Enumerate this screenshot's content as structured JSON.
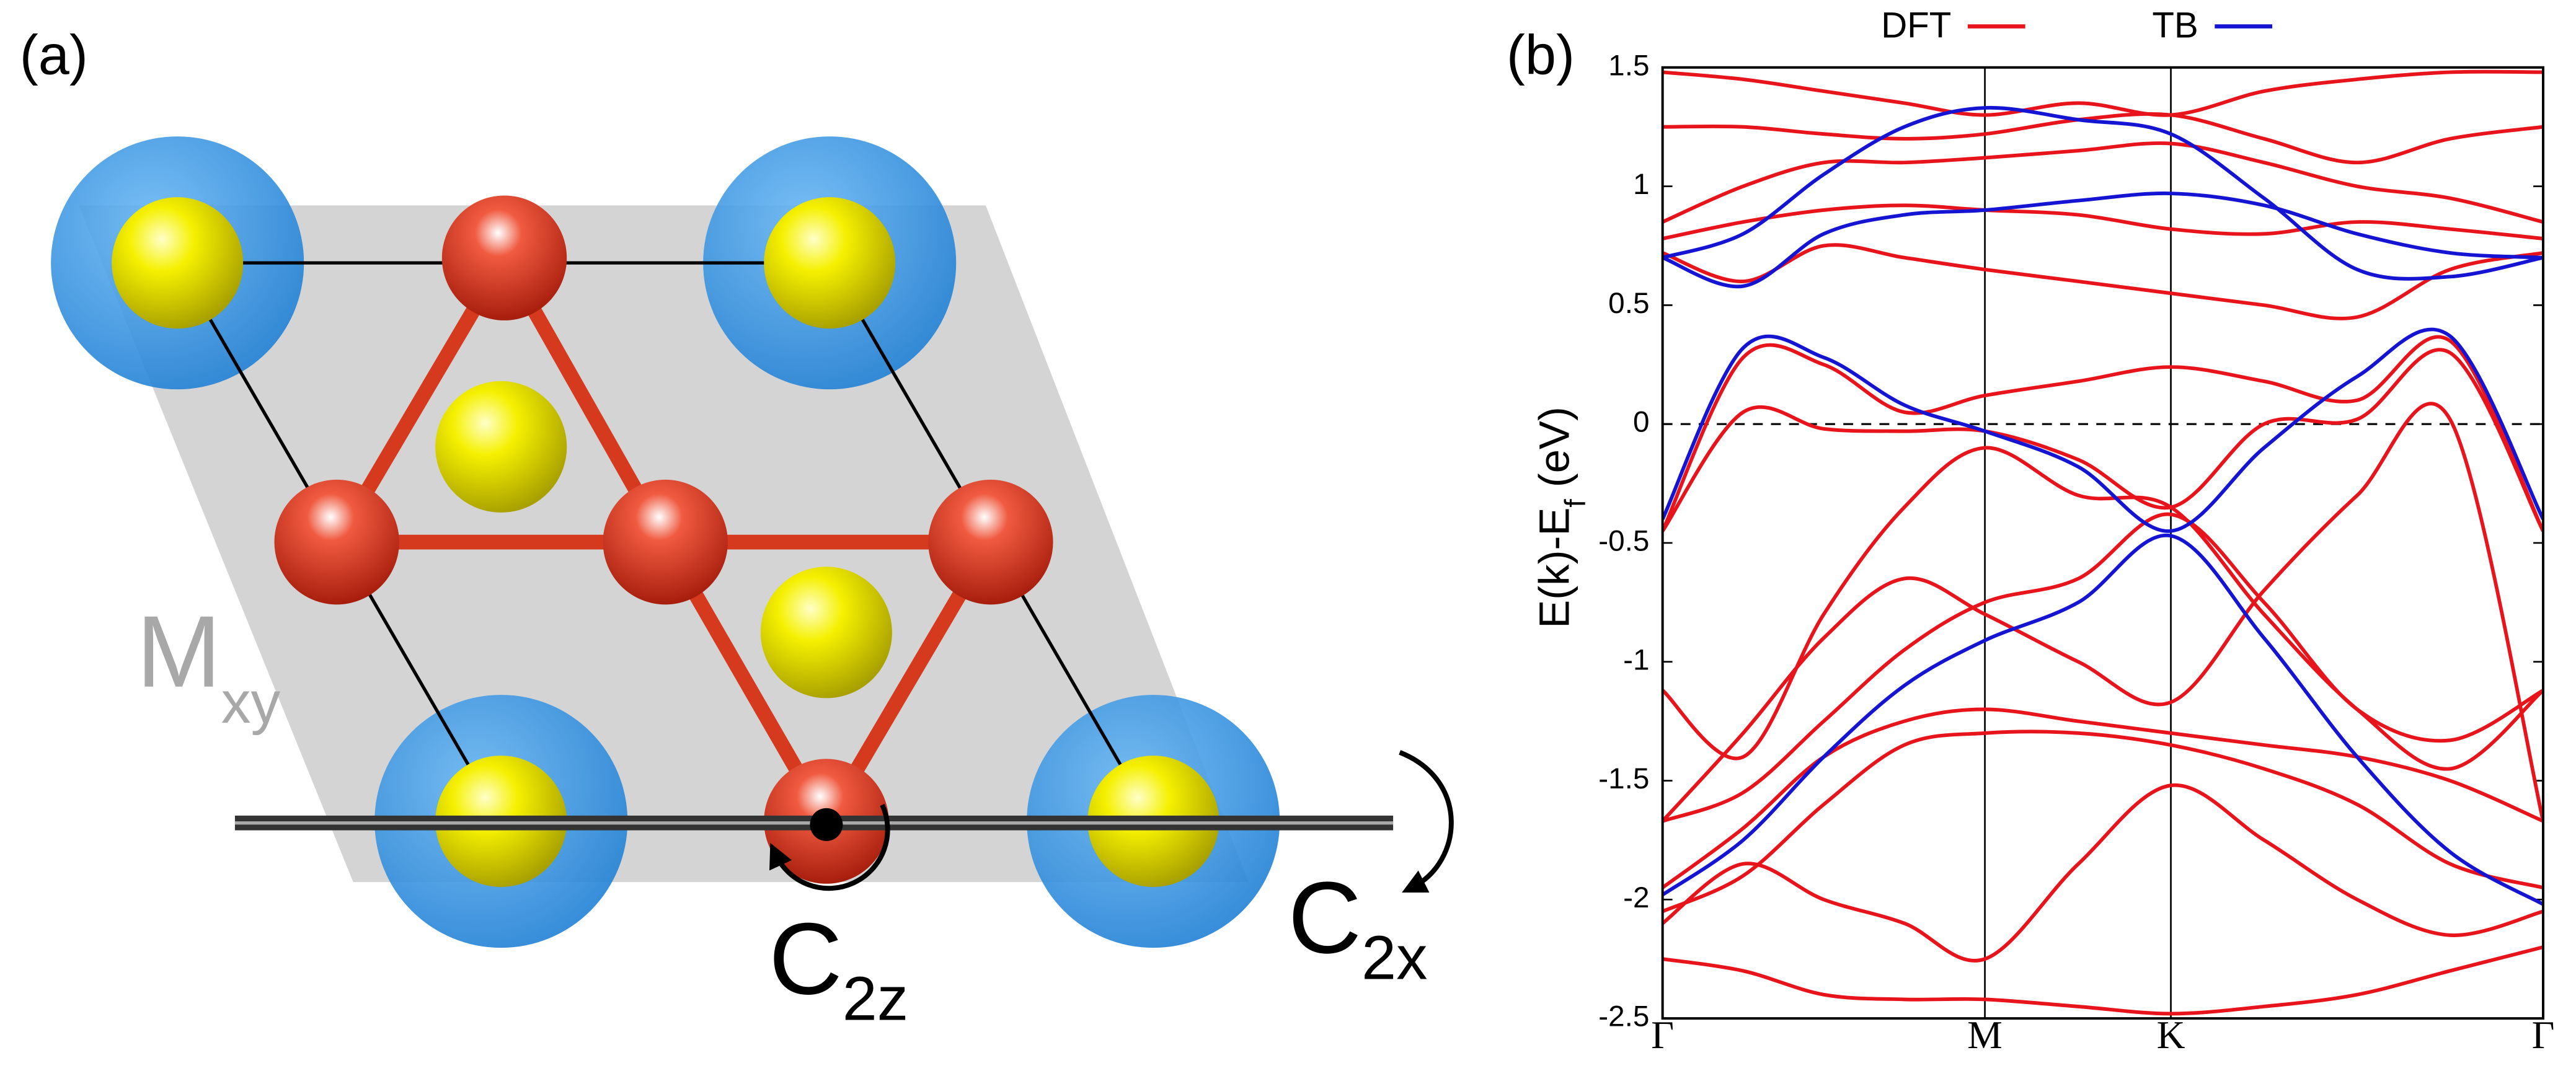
{
  "panels": {
    "a": {
      "label": "(a)",
      "mirror": "M",
      "mirror_sub": "xy",
      "rot_z": "C",
      "rot_z_sub": "2z",
      "rot_x": "C",
      "rot_x_sub": "2x"
    },
    "b": {
      "label": "(b)"
    }
  },
  "chart_data": {
    "type": "line",
    "ylabel": "E(k)-E",
    "ylabel_sub": "f",
    "ylabel_suffix": " (eV)",
    "x": [
      0,
      0.25,
      0.5,
      0.75,
      1,
      1.29,
      1.577,
      1.866,
      2.155,
      2.443,
      2.732
    ],
    "xlim": [
      0,
      2.732
    ],
    "xticks": [
      {
        "value": 0,
        "label": "Γ"
      },
      {
        "value": 1,
        "label": "M"
      },
      {
        "value": 1.577,
        "label": "K"
      },
      {
        "value": 2.732,
        "label": "Γ"
      }
    ],
    "xgrid": true,
    "ylim": [
      -2.5,
      1.5
    ],
    "yticks": [
      -2.5,
      -2,
      -1.5,
      -1,
      -0.5,
      0,
      0.5,
      1,
      1.5
    ],
    "hline": 0,
    "legend": "top",
    "series": [
      {
        "name": "DFT",
        "color": "#e8141c",
        "bands": [
          [
            1.48,
            1.45,
            1.4,
            1.35,
            1.3,
            1.35,
            1.3,
            1.4,
            1.45,
            1.48,
            1.48
          ],
          [
            1.25,
            1.25,
            1.22,
            1.2,
            1.22,
            1.28,
            1.3,
            1.2,
            1.1,
            1.2,
            1.25
          ],
          [
            0.85,
            1.0,
            1.1,
            1.1,
            1.12,
            1.15,
            1.18,
            1.1,
            1.0,
            0.95,
            0.85
          ],
          [
            0.78,
            0.85,
            0.9,
            0.92,
            0.9,
            0.88,
            0.82,
            0.8,
            0.85,
            0.82,
            0.78
          ],
          [
            0.72,
            0.6,
            0.75,
            0.7,
            0.65,
            0.6,
            0.55,
            0.5,
            0.45,
            0.65,
            0.72
          ],
          [
            -0.45,
            0.28,
            0.25,
            0.05,
            0.12,
            0.18,
            0.24,
            0.18,
            0.1,
            0.35,
            -0.45
          ],
          [
            -0.45,
            0.05,
            -0.02,
            -0.03,
            -0.03,
            -0.15,
            -0.35,
            0.0,
            0.02,
            0.3,
            -0.45
          ],
          [
            -1.12,
            -1.4,
            -0.8,
            -0.35,
            -0.1,
            -0.3,
            -0.35,
            -0.8,
            -1.2,
            -1.45,
            -1.12
          ],
          [
            -1.67,
            -1.3,
            -0.9,
            -0.65,
            -0.8,
            -1.0,
            -1.17,
            -0.7,
            -0.3,
            0.02,
            -1.67
          ],
          [
            -1.67,
            -1.55,
            -1.25,
            -0.95,
            -0.75,
            -0.65,
            -0.38,
            -0.75,
            -1.2,
            -1.33,
            -1.12
          ],
          [
            -1.95,
            -1.7,
            -1.4,
            -1.25,
            -1.2,
            -1.25,
            -1.3,
            -1.35,
            -1.4,
            -1.5,
            -1.67
          ],
          [
            -2.05,
            -1.9,
            -1.6,
            -1.35,
            -1.3,
            -1.3,
            -1.35,
            -1.45,
            -1.6,
            -1.85,
            -1.95
          ],
          [
            -2.1,
            -1.85,
            -2.0,
            -2.1,
            -2.25,
            -1.85,
            -1.52,
            -1.75,
            -2.0,
            -2.15,
            -2.05
          ],
          [
            -2.25,
            -2.3,
            -2.4,
            -2.42,
            -2.42,
            -2.45,
            -2.48,
            -2.45,
            -2.4,
            -2.3,
            -2.2
          ]
        ]
      },
      {
        "name": "TB",
        "color": "#1414d2",
        "bands": [
          [
            0.7,
            0.8,
            1.05,
            1.25,
            1.33,
            1.28,
            1.22,
            0.95,
            0.65,
            0.62,
            0.7
          ],
          [
            0.7,
            0.58,
            0.8,
            0.88,
            0.9,
            0.94,
            0.97,
            0.92,
            0.8,
            0.72,
            0.7
          ],
          [
            -0.4,
            0.32,
            0.28,
            0.08,
            -0.03,
            -0.18,
            -0.45,
            -0.1,
            0.2,
            0.37,
            -0.4
          ],
          [
            -1.98,
            -1.75,
            -1.4,
            -1.1,
            -0.91,
            -0.75,
            -0.47,
            -0.9,
            -1.4,
            -1.8,
            -2.02
          ]
        ]
      }
    ]
  }
}
